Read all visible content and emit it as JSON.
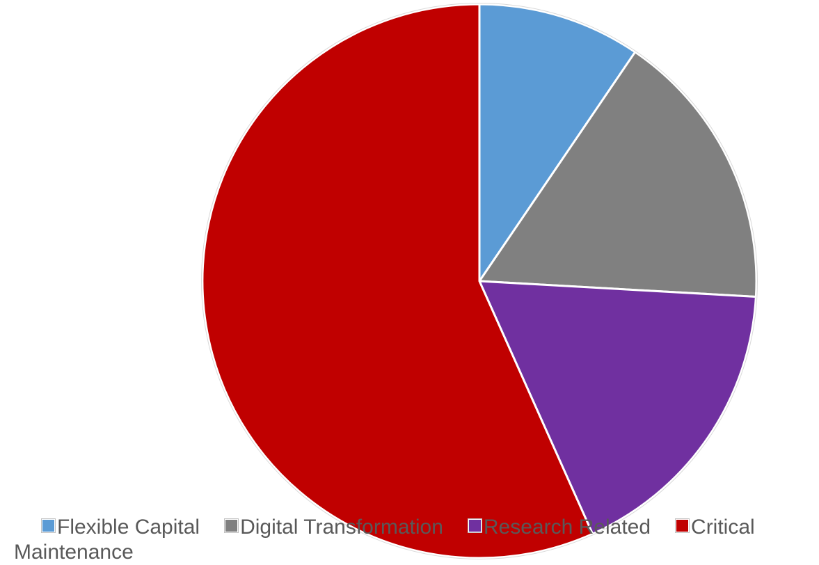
{
  "chart_data": {
    "type": "pie",
    "title": "",
    "start_angle_deg": 0,
    "direction": "clockwise",
    "legend_position": "bottom",
    "slices": [
      {
        "label": "Flexible Capital",
        "value": 9.5,
        "color": "#5b9bd5"
      },
      {
        "label": "Digital Transformation",
        "value": 16.4,
        "color": "#808080"
      },
      {
        "label": "Research Related",
        "value": 17.4,
        "color": "#7030a0"
      },
      {
        "label": "Critical Maintenance",
        "value": 56.7,
        "color": "#c00000"
      }
    ]
  }
}
